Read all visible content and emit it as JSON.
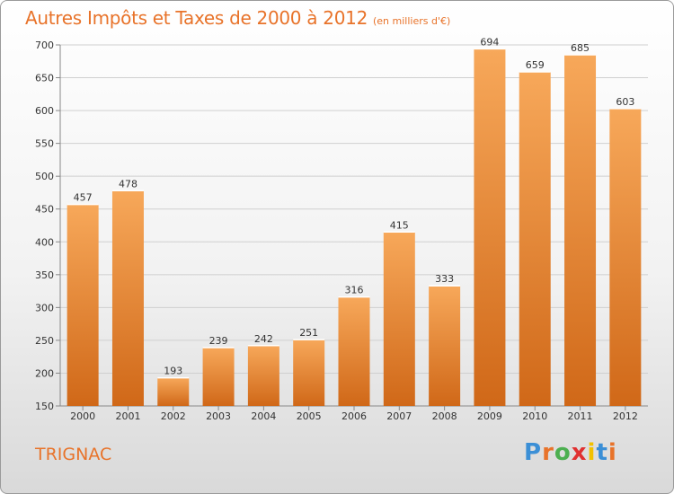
{
  "title": "Autres Impôts et Taxes de 2000 à 2012",
  "subtitle": "(en milliers d'€)",
  "city": "TRIGNAC",
  "logo": {
    "letters": [
      "P",
      "r",
      "o",
      "x",
      "i",
      "t",
      "i"
    ],
    "colors": [
      "#3b8fd6",
      "#e8732a",
      "#4caf50",
      "#e03030",
      "#f2c100",
      "#3b8fd6",
      "#e8732a"
    ]
  },
  "colors": {
    "bar_light": "#f7a85a",
    "bar_dark": "#d06818",
    "grid": "#d0d0d0"
  },
  "chart_data": {
    "type": "bar",
    "categories": [
      "2000",
      "2001",
      "2002",
      "2003",
      "2004",
      "2005",
      "2006",
      "2007",
      "2008",
      "2009",
      "2010",
      "2011",
      "2012"
    ],
    "values": [
      457,
      478,
      193,
      239,
      242,
      251,
      316,
      415,
      333,
      694,
      659,
      685,
      603
    ],
    "ylim": [
      150,
      700
    ],
    "yticks": [
      150,
      200,
      250,
      300,
      350,
      400,
      450,
      500,
      550,
      600,
      650,
      700
    ],
    "grid": true
  }
}
